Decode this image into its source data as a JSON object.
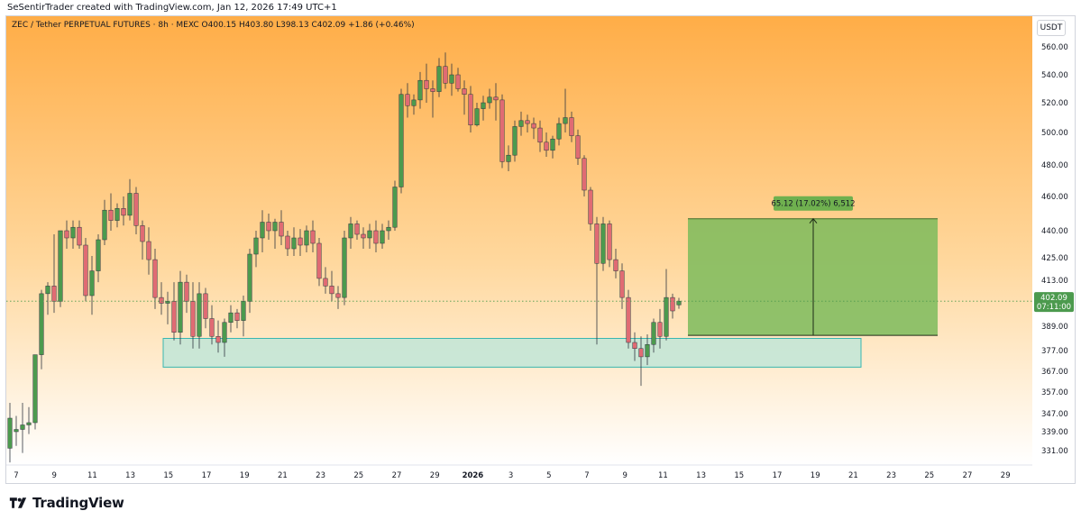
{
  "header": {
    "credit": "SeSentirTrader created with TradingView.com, Jan 12, 2026 17:49 UTC+1"
  },
  "legend": {
    "text": "ZEC / Tether PERPETUAL FUTURES · 8h · MEXC  O400.15  H403.80  L398.13  C402.09  +1.86 (+0.46%)"
  },
  "currency_label": "USDT",
  "footer": {
    "brand": "TradingView"
  },
  "colors": {
    "up": "#4c9a4e",
    "down": "#e06b73",
    "gradient_top": "#ffad47",
    "gradient_bottom": "#ffffff",
    "target_box": "#7cbb5c",
    "support_box": "#b8e6da",
    "price_label": "#4c9a4e"
  },
  "chart_data": {
    "type": "candlestick",
    "timeframe": "8h",
    "y_ticks": [
      560,
      540,
      520,
      500,
      480,
      460,
      440,
      425,
      413,
      389,
      377,
      367,
      357,
      347,
      339,
      331
    ],
    "y_tick_labels": [
      "560.00",
      "540.00",
      "520.00",
      "500.00",
      "480.00",
      "460.00",
      "440.00",
      "425.00",
      "413.00",
      "389.00",
      "377.00",
      "367.00",
      "357.00",
      "347.00",
      "339.00",
      "331.00"
    ],
    "x_labels": [
      "7",
      "9",
      "11",
      "13",
      "15",
      "17",
      "19",
      "21",
      "23",
      "25",
      "27",
      "29",
      "2026",
      "3",
      "5",
      "7",
      "9",
      "11",
      "13",
      "15",
      "17",
      "19",
      "21",
      "23",
      "25",
      "27",
      "29"
    ],
    "last_price": {
      "value": "402.09",
      "countdown": "07:11:00"
    },
    "target_box": {
      "from_price": 384.5,
      "to_price": 447,
      "label": "65.12 (17.02%) 6,512"
    },
    "support_zone": {
      "from_price": 369,
      "to_price": 383
    },
    "candles": [
      {
        "o": 332,
        "h": 352,
        "l": 326,
        "c": 345
      },
      {
        "o": 339,
        "h": 346,
        "l": 333,
        "c": 340
      },
      {
        "o": 340,
        "h": 352,
        "l": 330,
        "c": 342
      },
      {
        "o": 342,
        "h": 350,
        "l": 338,
        "c": 343
      },
      {
        "o": 343,
        "h": 375,
        "l": 340,
        "c": 375
      },
      {
        "o": 375,
        "h": 408,
        "l": 368,
        "c": 406
      },
      {
        "o": 406,
        "h": 412,
        "l": 395,
        "c": 410
      },
      {
        "o": 410,
        "h": 438,
        "l": 396,
        "c": 402
      },
      {
        "o": 402,
        "h": 440,
        "l": 399,
        "c": 440
      },
      {
        "o": 440,
        "h": 446,
        "l": 430,
        "c": 436
      },
      {
        "o": 436,
        "h": 446,
        "l": 430,
        "c": 442
      },
      {
        "o": 442,
        "h": 446,
        "l": 430,
        "c": 432
      },
      {
        "o": 432,
        "h": 436,
        "l": 402,
        "c": 405
      },
      {
        "o": 405,
        "h": 426,
        "l": 395,
        "c": 418
      },
      {
        "o": 418,
        "h": 438,
        "l": 412,
        "c": 435
      },
      {
        "o": 435,
        "h": 458,
        "l": 432,
        "c": 452
      },
      {
        "o": 452,
        "h": 462,
        "l": 440,
        "c": 446
      },
      {
        "o": 446,
        "h": 456,
        "l": 442,
        "c": 453
      },
      {
        "o": 453,
        "h": 460,
        "l": 443,
        "c": 449
      },
      {
        "o": 449,
        "h": 471,
        "l": 446,
        "c": 462
      },
      {
        "o": 462,
        "h": 466,
        "l": 438,
        "c": 443
      },
      {
        "o": 443,
        "h": 446,
        "l": 424,
        "c": 434
      },
      {
        "o": 434,
        "h": 442,
        "l": 416,
        "c": 424
      },
      {
        "o": 424,
        "h": 430,
        "l": 398,
        "c": 404
      },
      {
        "o": 404,
        "h": 412,
        "l": 395,
        "c": 401
      },
      {
        "o": 401,
        "h": 407,
        "l": 390,
        "c": 402
      },
      {
        "o": 402,
        "h": 412,
        "l": 382,
        "c": 386
      },
      {
        "o": 386,
        "h": 418,
        "l": 380,
        "c": 412
      },
      {
        "o": 412,
        "h": 416,
        "l": 396,
        "c": 402
      },
      {
        "o": 402,
        "h": 412,
        "l": 378,
        "c": 384
      },
      {
        "o": 384,
        "h": 412,
        "l": 378,
        "c": 406
      },
      {
        "o": 406,
        "h": 409,
        "l": 388,
        "c": 393
      },
      {
        "o": 393,
        "h": 400,
        "l": 380,
        "c": 384
      },
      {
        "o": 384,
        "h": 392,
        "l": 376,
        "c": 381
      },
      {
        "o": 381,
        "h": 393,
        "l": 374,
        "c": 391
      },
      {
        "o": 391,
        "h": 400,
        "l": 386,
        "c": 396
      },
      {
        "o": 396,
        "h": 398,
        "l": 388,
        "c": 392
      },
      {
        "o": 392,
        "h": 405,
        "l": 384,
        "c": 402
      },
      {
        "o": 402,
        "h": 430,
        "l": 396,
        "c": 427
      },
      {
        "o": 427,
        "h": 440,
        "l": 420,
        "c": 436
      },
      {
        "o": 436,
        "h": 452,
        "l": 428,
        "c": 445
      },
      {
        "o": 445,
        "h": 450,
        "l": 435,
        "c": 440
      },
      {
        "o": 440,
        "h": 447,
        "l": 430,
        "c": 445
      },
      {
        "o": 445,
        "h": 452,
        "l": 432,
        "c": 437
      },
      {
        "o": 437,
        "h": 440,
        "l": 426,
        "c": 430
      },
      {
        "o": 430,
        "h": 442,
        "l": 426,
        "c": 436
      },
      {
        "o": 436,
        "h": 441,
        "l": 426,
        "c": 432
      },
      {
        "o": 432,
        "h": 443,
        "l": 428,
        "c": 440
      },
      {
        "o": 440,
        "h": 446,
        "l": 428,
        "c": 433
      },
      {
        "o": 433,
        "h": 436,
        "l": 410,
        "c": 414
      },
      {
        "o": 414,
        "h": 420,
        "l": 406,
        "c": 410
      },
      {
        "o": 410,
        "h": 418,
        "l": 402,
        "c": 406
      },
      {
        "o": 406,
        "h": 410,
        "l": 398,
        "c": 404
      },
      {
        "o": 404,
        "h": 440,
        "l": 400,
        "c": 436
      },
      {
        "o": 436,
        "h": 448,
        "l": 430,
        "c": 444
      },
      {
        "o": 444,
        "h": 446,
        "l": 435,
        "c": 438
      },
      {
        "o": 438,
        "h": 442,
        "l": 430,
        "c": 436
      },
      {
        "o": 436,
        "h": 444,
        "l": 430,
        "c": 440
      },
      {
        "o": 440,
        "h": 446,
        "l": 428,
        "c": 433
      },
      {
        "o": 433,
        "h": 444,
        "l": 430,
        "c": 440
      },
      {
        "o": 440,
        "h": 446,
        "l": 435,
        "c": 442
      },
      {
        "o": 442,
        "h": 470,
        "l": 440,
        "c": 466
      },
      {
        "o": 466,
        "h": 530,
        "l": 462,
        "c": 526
      },
      {
        "o": 526,
        "h": 534,
        "l": 510,
        "c": 518
      },
      {
        "o": 518,
        "h": 526,
        "l": 512,
        "c": 522
      },
      {
        "o": 522,
        "h": 542,
        "l": 516,
        "c": 536
      },
      {
        "o": 536,
        "h": 548,
        "l": 520,
        "c": 530
      },
      {
        "o": 530,
        "h": 536,
        "l": 510,
        "c": 528
      },
      {
        "o": 528,
        "h": 552,
        "l": 524,
        "c": 546
      },
      {
        "o": 546,
        "h": 556,
        "l": 530,
        "c": 534
      },
      {
        "o": 534,
        "h": 548,
        "l": 525,
        "c": 540
      },
      {
        "o": 540,
        "h": 545,
        "l": 528,
        "c": 530
      },
      {
        "o": 530,
        "h": 536,
        "l": 512,
        "c": 526
      },
      {
        "o": 526,
        "h": 532,
        "l": 500,
        "c": 505
      },
      {
        "o": 505,
        "h": 520,
        "l": 504,
        "c": 516
      },
      {
        "o": 516,
        "h": 525,
        "l": 508,
        "c": 520
      },
      {
        "o": 520,
        "h": 530,
        "l": 516,
        "c": 524
      },
      {
        "o": 524,
        "h": 534,
        "l": 508,
        "c": 522
      },
      {
        "o": 522,
        "h": 526,
        "l": 478,
        "c": 482
      },
      {
        "o": 482,
        "h": 492,
        "l": 476,
        "c": 486
      },
      {
        "o": 486,
        "h": 508,
        "l": 482,
        "c": 504
      },
      {
        "o": 504,
        "h": 514,
        "l": 498,
        "c": 508
      },
      {
        "o": 508,
        "h": 512,
        "l": 500,
        "c": 506
      },
      {
        "o": 506,
        "h": 510,
        "l": 496,
        "c": 503
      },
      {
        "o": 503,
        "h": 508,
        "l": 488,
        "c": 494
      },
      {
        "o": 494,
        "h": 500,
        "l": 485,
        "c": 489
      },
      {
        "o": 489,
        "h": 498,
        "l": 484,
        "c": 496
      },
      {
        "o": 496,
        "h": 510,
        "l": 492,
        "c": 506
      },
      {
        "o": 506,
        "h": 530,
        "l": 500,
        "c": 510
      },
      {
        "o": 510,
        "h": 514,
        "l": 494,
        "c": 498
      },
      {
        "o": 498,
        "h": 502,
        "l": 480,
        "c": 484
      },
      {
        "o": 484,
        "h": 486,
        "l": 460,
        "c": 464
      },
      {
        "o": 464,
        "h": 466,
        "l": 440,
        "c": 444
      },
      {
        "o": 444,
        "h": 448,
        "l": 380,
        "c": 422
      },
      {
        "o": 422,
        "h": 448,
        "l": 418,
        "c": 444
      },
      {
        "o": 444,
        "h": 446,
        "l": 420,
        "c": 424
      },
      {
        "o": 424,
        "h": 430,
        "l": 414,
        "c": 418
      },
      {
        "o": 418,
        "h": 422,
        "l": 398,
        "c": 404
      },
      {
        "o": 404,
        "h": 408,
        "l": 378,
        "c": 381
      },
      {
        "o": 381,
        "h": 386,
        "l": 372,
        "c": 378
      },
      {
        "o": 378,
        "h": 384,
        "l": 360,
        "c": 374
      },
      {
        "o": 374,
        "h": 385,
        "l": 370,
        "c": 380
      },
      {
        "o": 380,
        "h": 393,
        "l": 376,
        "c": 391
      },
      {
        "o": 391,
        "h": 398,
        "l": 378,
        "c": 384
      },
      {
        "o": 384,
        "h": 419,
        "l": 382,
        "c": 404
      },
      {
        "o": 404,
        "h": 406,
        "l": 393,
        "c": 397
      },
      {
        "o": 400.15,
        "h": 403.8,
        "l": 398.13,
        "c": 402.09
      }
    ]
  }
}
